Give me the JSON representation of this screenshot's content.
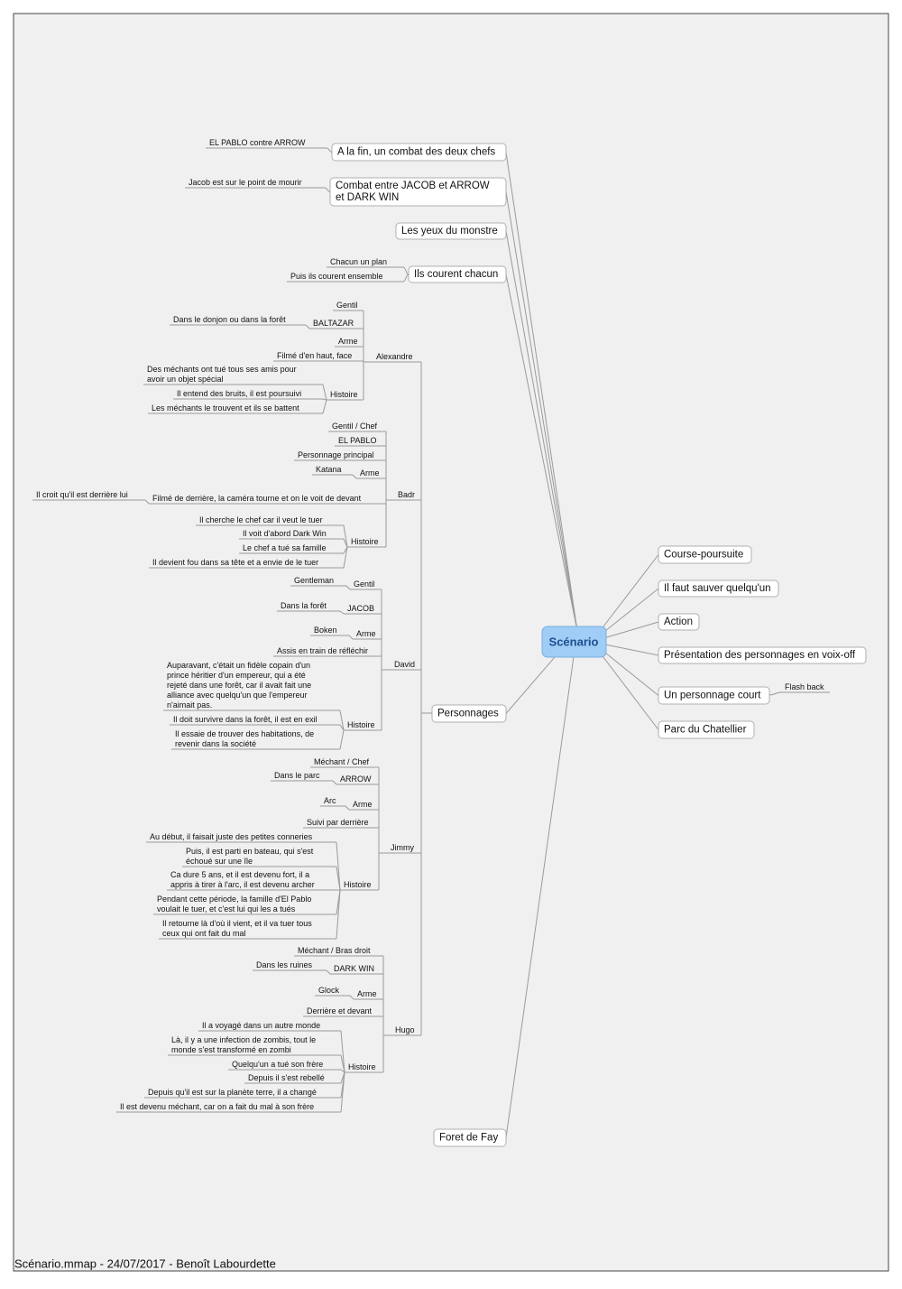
{
  "central_topic": "Scénario",
  "right_branches": [
    {
      "label": "Course-poursuite"
    },
    {
      "label": "Il faut sauver quelqu'un"
    },
    {
      "label": "Action"
    },
    {
      "label": "Présentation des personnages en voix-off"
    },
    {
      "label": "Un personnage court",
      "children": [
        "Flash back"
      ]
    },
    {
      "label": "Parc du Chatellier"
    }
  ],
  "left_branches": [
    {
      "label": "A la fin, un combat des deux chefs",
      "children": [
        "EL PABLO contre ARROW"
      ]
    },
    {
      "label": [
        "Combat entre JACOB et ARROW",
        "et DARK WIN"
      ],
      "children": [
        "Jacob est sur le point de mourir"
      ]
    },
    {
      "label": "Les yeux du monstre"
    },
    {
      "label": "Ils courent chacun",
      "children": [
        "Chacun un plan",
        "Puis ils courent ensemble"
      ]
    },
    {
      "label": "Personnages",
      "characters": [
        {
          "name": "Alexandre",
          "items": [
            {
              "label": "Gentil"
            },
            {
              "label": "BALTAZAR",
              "children": [
                "Dans le donjon ou dans la forêt"
              ]
            },
            {
              "label": "Arme"
            },
            {
              "label": "Filmé d'en haut, face"
            },
            {
              "label": "Histoire",
              "children": [
                [
                  "Des méchants ont tué tous ses amis pour",
                  "avoir un objet spécial"
                ],
                "Il entend des bruits, il est poursuivi",
                "Les méchants le trouvent et ils se battent"
              ]
            }
          ]
        },
        {
          "name": "Badr",
          "items": [
            {
              "label": "Gentil / Chef"
            },
            {
              "label": "EL PABLO"
            },
            {
              "label": "Personnage principal"
            },
            {
              "label": "Arme",
              "children": [
                "Katana"
              ]
            },
            {
              "label": "Filmé de derrière, la caméra tourne et on le voit de devant",
              "children": [
                "Il croit qu'il est derrière lui"
              ]
            },
            {
              "label": "Histoire",
              "children": [
                "Il cherche le chef car il veut le tuer",
                "Il voit d'abord Dark Win",
                "Le chef a tué sa famille",
                "Il devient fou dans sa tête et a envie de le tuer"
              ]
            }
          ]
        },
        {
          "name": "David",
          "items": [
            {
              "label": "Gentil",
              "children": [
                "Gentleman"
              ]
            },
            {
              "label": "JACOB",
              "children": [
                "Dans la forêt"
              ]
            },
            {
              "label": "Arme",
              "children": [
                "Boken"
              ]
            },
            {
              "label": "Assis en train de réfléchir"
            },
            {
              "label": "Histoire",
              "children": [
                [
                  "Auparavant, c'était un fidèle copain d'un",
                  "prince héritier d'un empereur, qui a été",
                  "rejeté dans une forêt, car il avait fait une",
                  "alliance avec quelqu'un que l'empereur",
                  "n'aimait pas."
                ],
                "Il doit survivre dans la forêt, il est en exil",
                [
                  "Il essaie de trouver des habitations, de",
                  "revenir dans la société"
                ]
              ]
            }
          ]
        },
        {
          "name": "Jimmy",
          "items": [
            {
              "label": "Méchant / Chef"
            },
            {
              "label": "ARROW",
              "children": [
                "Dans le parc"
              ]
            },
            {
              "label": "Arme",
              "children": [
                "Arc"
              ]
            },
            {
              "label": "Suivi par derrière"
            },
            {
              "label": "Histoire",
              "children": [
                "Au début, il faisait juste des petites conneries",
                [
                  "Puis, il est parti en bateau, qui s'est",
                  "échoué sur une île"
                ],
                [
                  "Ca dure 5 ans, et il est devenu fort, il a",
                  "appris à tirer à l'arc, il est devenu archer"
                ],
                [
                  "Pendant cette période, la famille d'El Pablo",
                  "voulait le tuer, et c'est lui qui les a tués"
                ],
                [
                  "Il retourne là d'où il vient, et il va tuer tous",
                  "ceux qui ont fait du mal"
                ]
              ]
            }
          ]
        },
        {
          "name": "Hugo",
          "items": [
            {
              "label": "Méchant / Bras droit"
            },
            {
              "label": "DARK WIN",
              "children": [
                "Dans les ruines"
              ]
            },
            {
              "label": "Arme",
              "children": [
                "Glock"
              ]
            },
            {
              "label": "Derrière et devant"
            },
            {
              "label": "Histoire",
              "children": [
                "Il a voyagé dans un autre monde",
                [
                  "Là, il y a une infection de zombis, tout le",
                  "monde s'est transformé en zombi"
                ],
                "Quelqu'un a tué son frère",
                "Depuis il s'est rebellé",
                "Depuis qu'il est sur la planète terre, il a changé",
                "Il est devenu méchant, car on a fait du mal à son frère"
              ]
            }
          ]
        }
      ]
    },
    {
      "label": "Foret de Fay"
    }
  ],
  "footer": "Scénario.mmap - 24/07/2017 - Benoît Labourdette"
}
